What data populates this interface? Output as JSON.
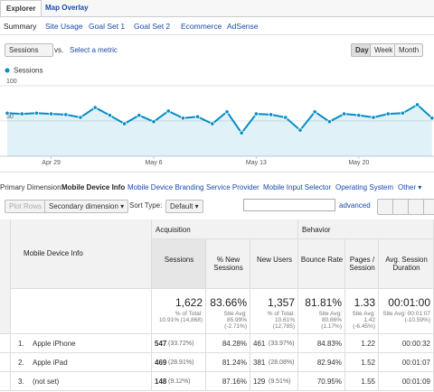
{
  "tabs": [
    "Explorer",
    "Map Overlay"
  ],
  "subtabs": [
    "Summary",
    "Site Usage",
    "Goal Set 1",
    "Goal Set 2",
    "Ecommerce",
    "AdSense"
  ],
  "metric": "Sessions",
  "vs": "vs.",
  "select_metric": "Select a metric",
  "period_buttons": [
    "Day",
    "Week",
    "Month"
  ],
  "chart_data": {
    "type": "line",
    "categories": [
      null,
      null,
      null,
      "Apr 29",
      null,
      null,
      null,
      null,
      null,
      null,
      "May 6",
      null,
      null,
      null,
      null,
      null,
      null,
      "May 13",
      null,
      null,
      null,
      null,
      null,
      null,
      "May 20",
      null,
      null,
      null,
      null,
      null
    ],
    "series": [
      {
        "name": "Sessions",
        "color": "#058dc7",
        "values": [
          61,
          60,
          61,
          60,
          59,
          55,
          69,
          58,
          46,
          58,
          49,
          64,
          54,
          56,
          46,
          63,
          33,
          60,
          59,
          55,
          37,
          63,
          49,
          60,
          58,
          55,
          60,
          61,
          73,
          54
        ]
      }
    ],
    "ylim": [
      0,
      110
    ],
    "yticks": [
      50,
      100
    ]
  },
  "dimension": {
    "label": "Primary Dimension:",
    "options": [
      "Mobile Device Info",
      "Mobile Device Branding",
      "Service Provider",
      "Mobile Input Selector",
      "Operating System",
      "Other ▾"
    ]
  },
  "toolbar": {
    "plot_rows": "Plot Rows",
    "secondary": "Secondary dimension ▾",
    "sort_label": "Sort Type:",
    "sort": "Default ▾",
    "advanced": "advanced"
  },
  "table": {
    "dimension_header": "Mobile Device Info",
    "groups": [
      "Acquisition",
      "Behavior"
    ],
    "columns": [
      "Sessions",
      "% New Sessions",
      "New Users",
      "Bounce Rate",
      "Pages / Session",
      "Avg. Session Duration"
    ],
    "totals": [
      {
        "value": "1,622",
        "note": "% of Total: 10.91% (14,868)"
      },
      {
        "value": "83.66%",
        "note": "Site Avg: 85.99% (-2.71%)"
      },
      {
        "value": "1,357",
        "note": "% of Total: 10.61% (12,785)"
      },
      {
        "value": "81.81%",
        "note": "Site Avg: 80.86% (1.17%)"
      },
      {
        "value": "1.33",
        "note": "Site Avg: 1.42 (-6.45%)"
      },
      {
        "value": "00:01:00",
        "note": "Site Avg: 00:01:07 (-10.59%)"
      }
    ],
    "rows": [
      {
        "index": "1.",
        "name": "Apple iPhone",
        "cells": [
          {
            "value": "547",
            "share": "(33.72%)"
          },
          {
            "value": "84.28%"
          },
          {
            "value": "461",
            "share": "(33.97%)"
          },
          {
            "value": "84.83%"
          },
          {
            "value": "1.22"
          },
          {
            "value": "00:00:32"
          }
        ]
      },
      {
        "index": "2.",
        "name": "Apple iPad",
        "cells": [
          {
            "value": "469",
            "share": "(28.91%)"
          },
          {
            "value": "81.24%"
          },
          {
            "value": "381",
            "share": "(28.08%)"
          },
          {
            "value": "82.94%"
          },
          {
            "value": "1.52"
          },
          {
            "value": "00:01:07"
          }
        ]
      },
      {
        "index": "3.",
        "name": "(not set)",
        "cells": [
          {
            "value": "148",
            "share": "(9.12%)"
          },
          {
            "value": "87.16%"
          },
          {
            "value": "129",
            "share": "(9.51%)"
          },
          {
            "value": "70.95%"
          },
          {
            "value": "1.55"
          },
          {
            "value": "00:01:09"
          }
        ]
      }
    ]
  }
}
